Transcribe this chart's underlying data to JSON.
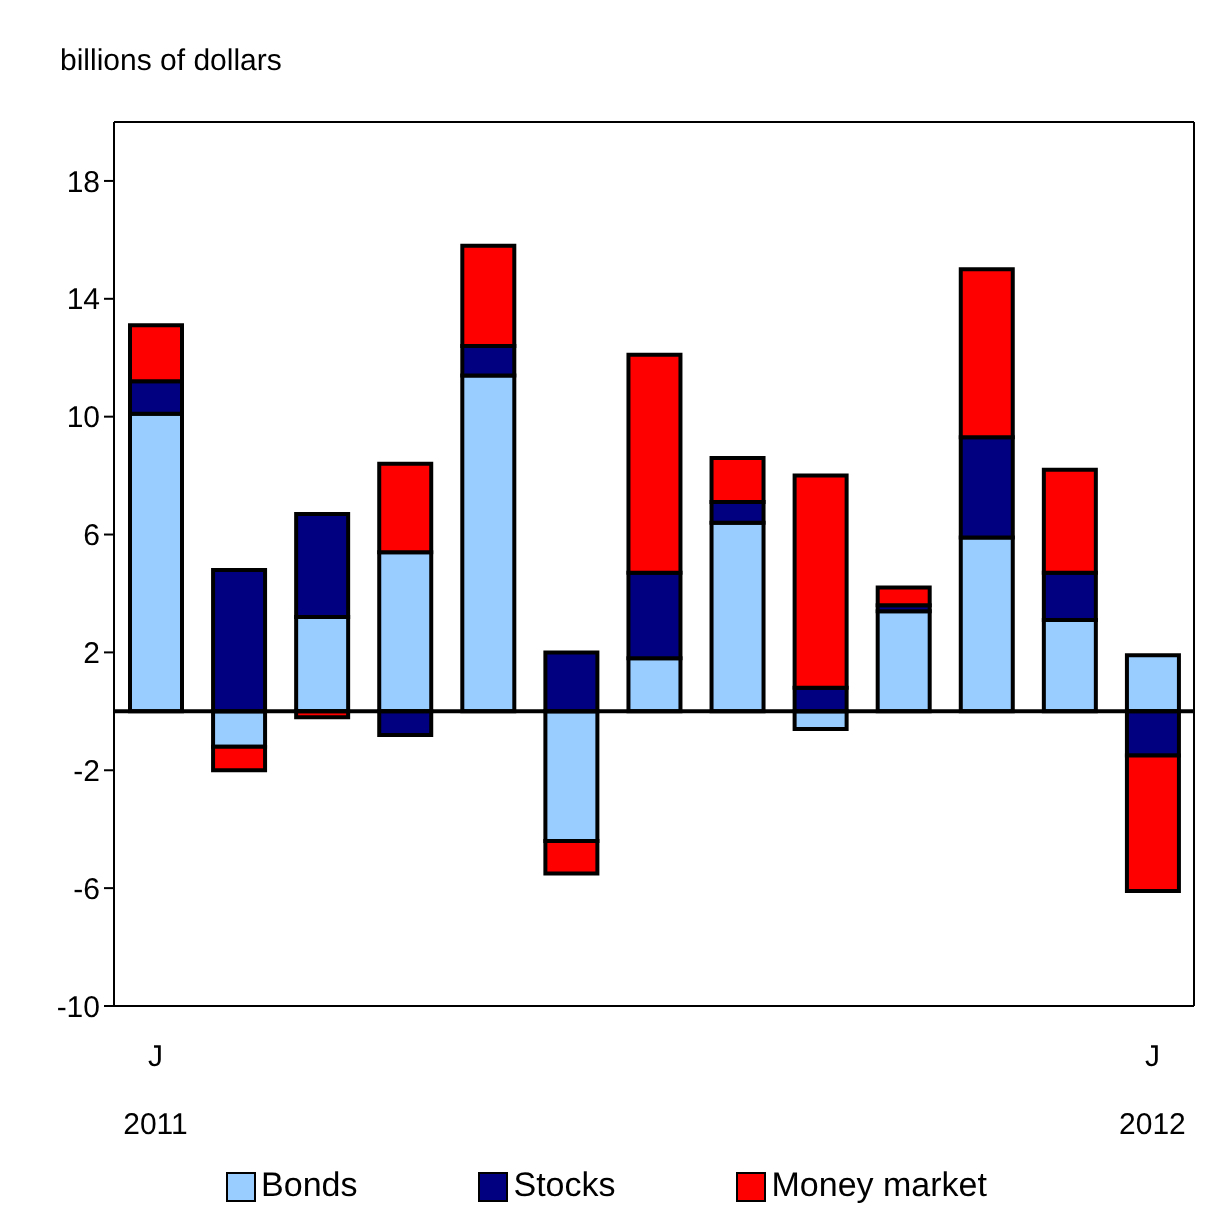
{
  "chart_data": {
    "type": "bar",
    "ylabel": "billions of dollars",
    "stacked": true,
    "categories": [
      "J\n2011",
      null,
      null,
      null,
      null,
      null,
      null,
      null,
      null,
      null,
      null,
      null,
      "J\n2012"
    ],
    "series": [
      {
        "name": "Bonds",
        "color": "#99ccff",
        "values": [
          10.1,
          -1.2,
          3.2,
          5.4,
          11.4,
          -4.4,
          1.8,
          6.4,
          -0.6,
          3.4,
          5.9,
          3.1,
          1.9
        ]
      },
      {
        "name": "Stocks",
        "color": "#000080",
        "values": [
          1.1,
          4.8,
          3.5,
          -0.8,
          1.0,
          2.0,
          2.9,
          0.7,
          0.8,
          0.2,
          3.4,
          1.6,
          -1.5
        ]
      },
      {
        "name": "Money market",
        "color": "#ff0000",
        "values": [
          1.9,
          -0.8,
          -0.2,
          3.0,
          3.4,
          -1.1,
          7.4,
          1.5,
          7.2,
          0.6,
          5.7,
          3.5,
          -4.6
        ]
      }
    ],
    "ylim": [
      -10,
      20
    ],
    "yticks": [
      -10,
      -6,
      -2,
      2,
      6,
      10,
      14,
      18
    ],
    "grid": false,
    "legend": "bottom"
  }
}
